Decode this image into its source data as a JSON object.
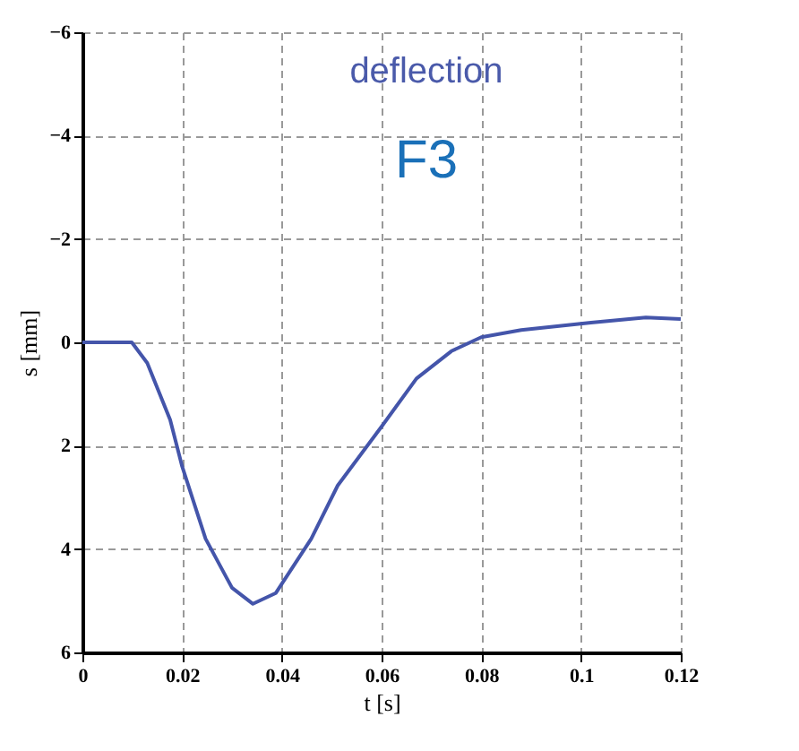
{
  "chart_data": {
    "type": "line",
    "xlabel": "t [s]",
    "ylabel": "s [mm]",
    "annotations": [
      "deflection",
      "F3"
    ],
    "x": [
      0,
      0.005,
      0.0099,
      0.013,
      0.0176,
      0.02,
      0.0247,
      0.03,
      0.0342,
      0.0388,
      0.0459,
      0.0512,
      0.06,
      0.067,
      0.074,
      0.08,
      0.088,
      0.102,
      0.113,
      0.12
    ],
    "series": [
      {
        "color": "#4455aa",
        "values": [
          0,
          0,
          0,
          0.4,
          1.5,
          2.4,
          3.8,
          4.75,
          5.06,
          4.85,
          3.8,
          2.77,
          1.63,
          0.7,
          0.17,
          -0.1,
          -0.24,
          -0.38,
          -0.48,
          -0.45
        ]
      }
    ],
    "xlim": [
      0,
      0.12
    ],
    "xticks": [
      0,
      0.02,
      0.04,
      0.06,
      0.08,
      0.1,
      0.12
    ],
    "ylim": [
      6,
      -6
    ],
    "yticks": [
      -6,
      -4,
      -2,
      0,
      2,
      4,
      6
    ],
    "grid": true,
    "line_style": "solid",
    "marker": "none"
  }
}
